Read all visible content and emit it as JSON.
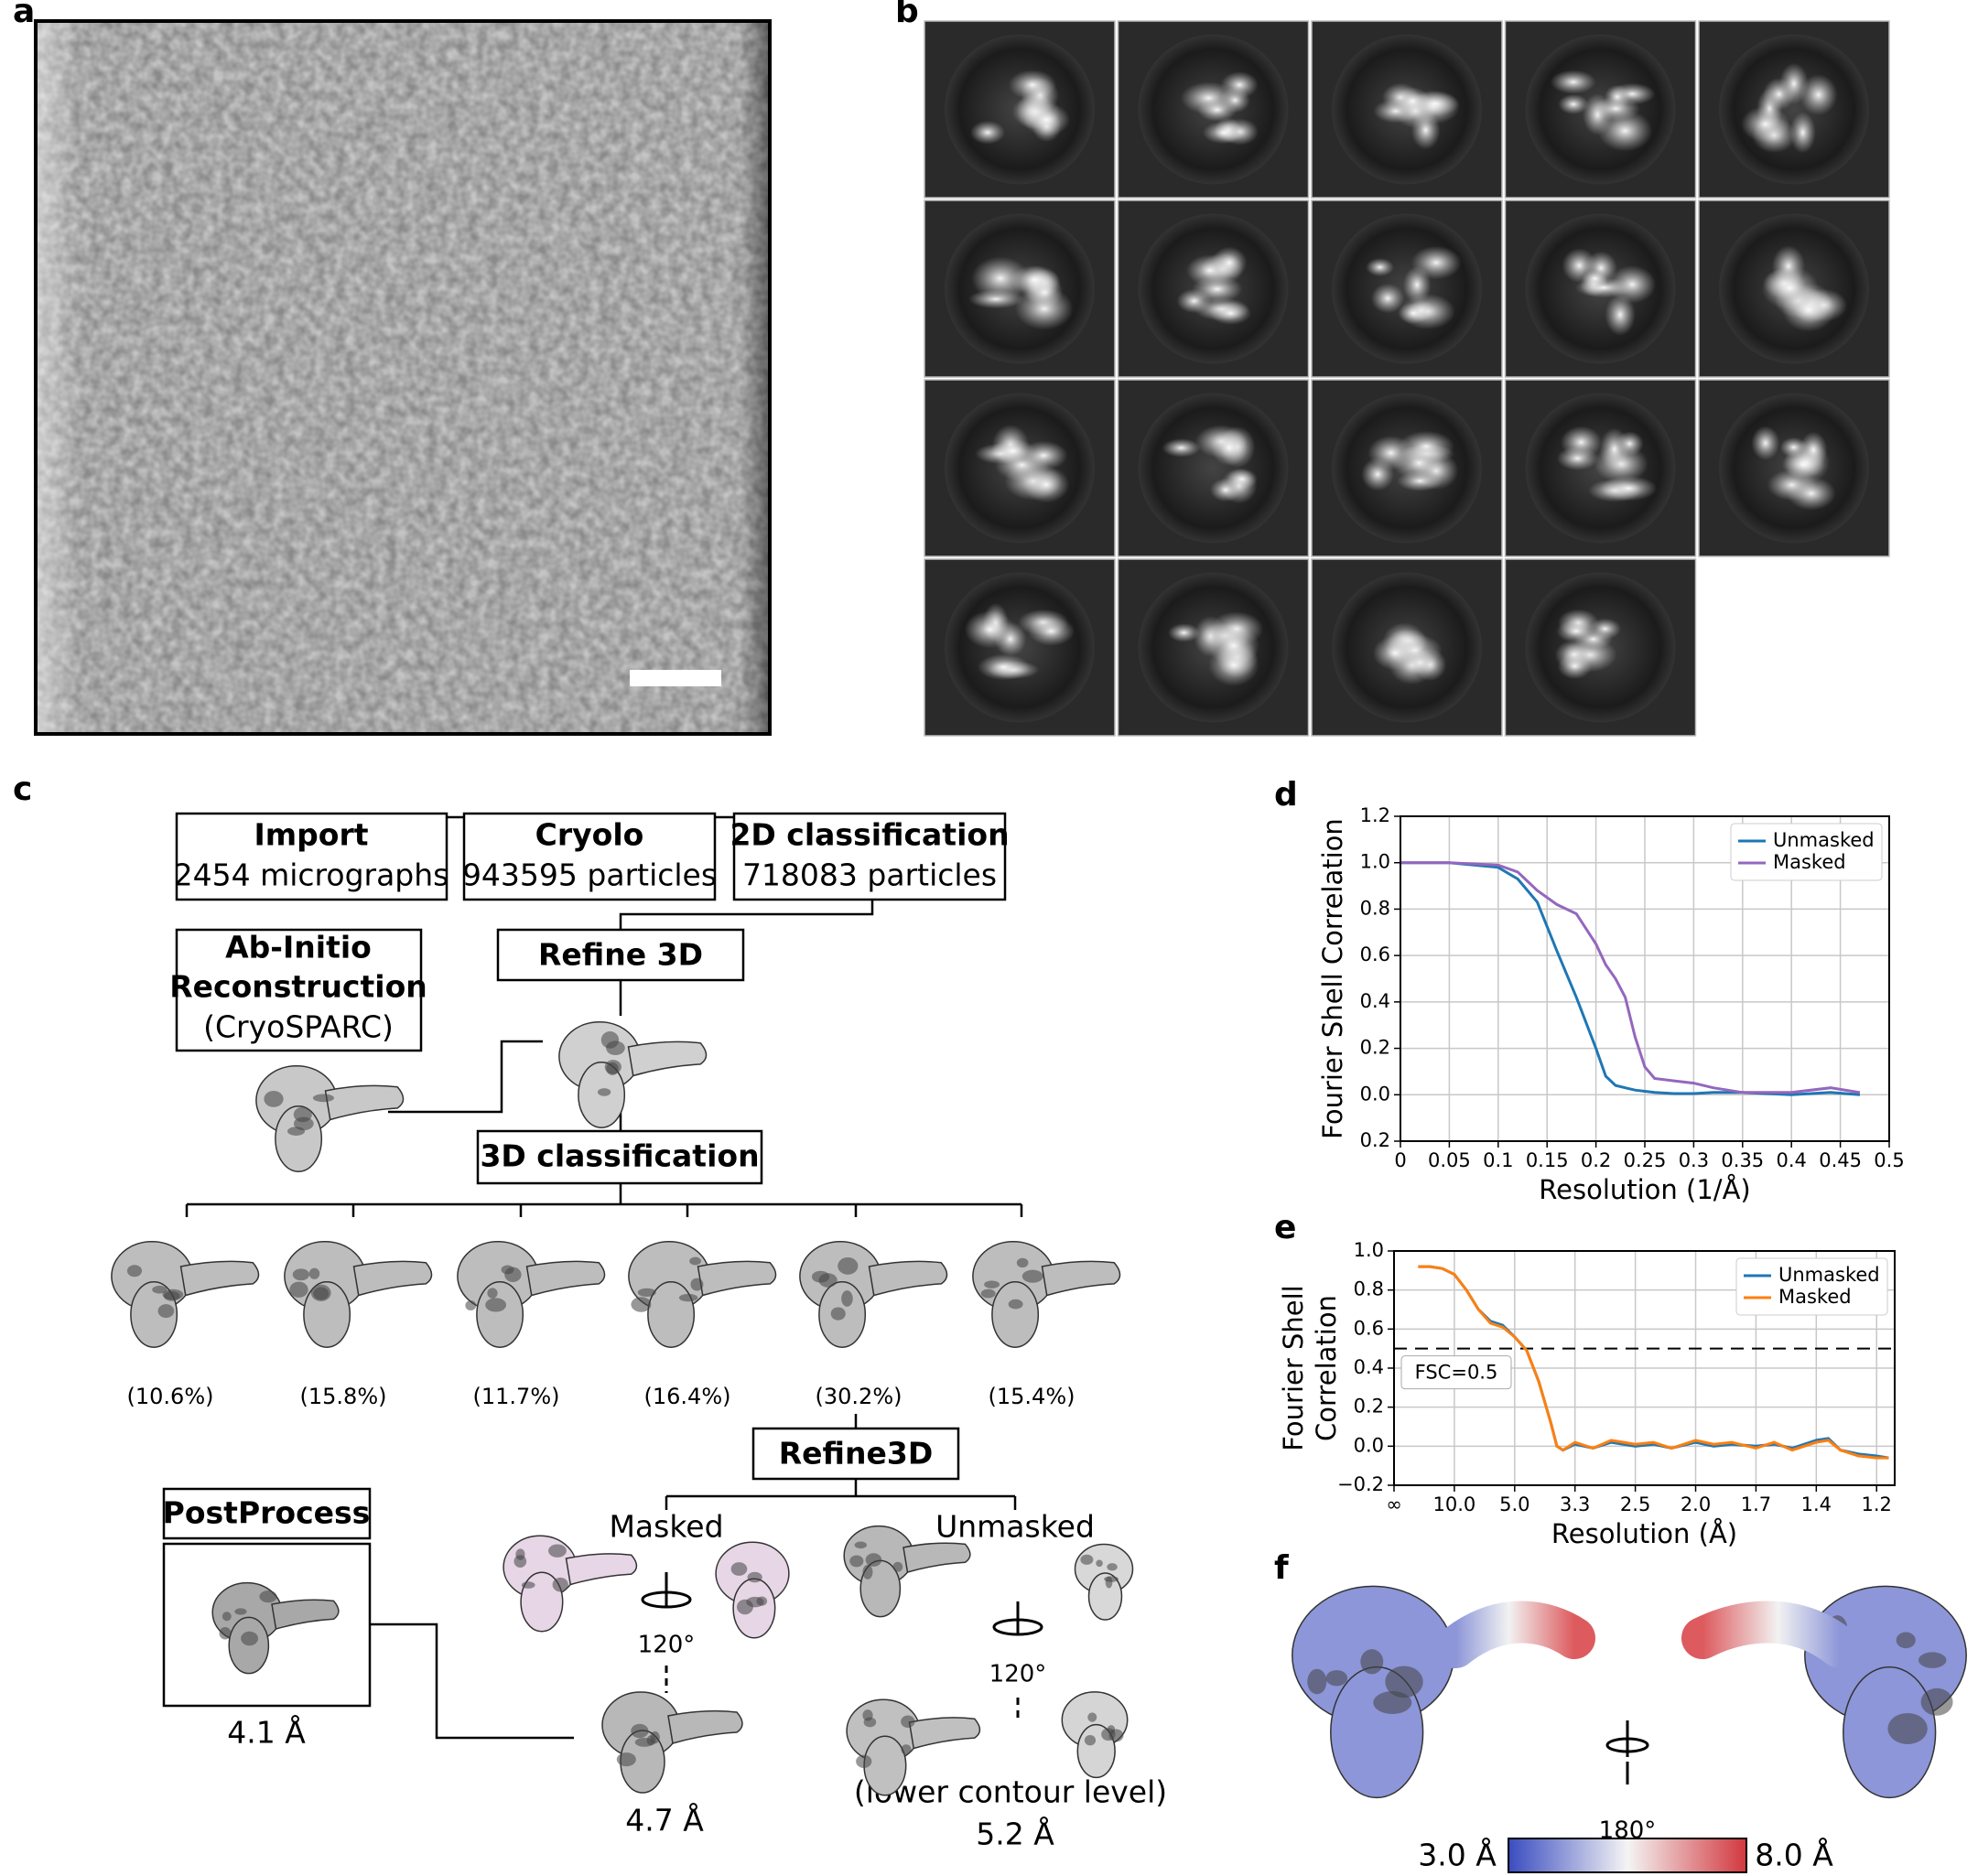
{
  "panel_labels": [
    "a",
    "b",
    "c",
    "d",
    "e",
    "f"
  ],
  "flowchart": {
    "import": {
      "title": "Import",
      "detail": "2454 micrographs"
    },
    "cryolo": {
      "title": "Cryolo",
      "detail": "943595 particles"
    },
    "classification_2d": {
      "title": "2D classification",
      "detail": "718083 particles"
    },
    "ab_initio": {
      "lines": [
        "Ab-Initio",
        "Reconstruction"
      ],
      "detail": "(CryoSPARC)"
    },
    "refine_3d": "Refine 3D",
    "classification_3d": "3D classification",
    "class_fractions": [
      "(10.6%)",
      "(15.8%)",
      "(11.7%)",
      "(16.4%)",
      "(30.2%)",
      "(15.4%)"
    ],
    "refine_3d_second": "Refine3D",
    "masked": "Masked",
    "unmasked": "Unmasked",
    "rotation_masked": "120°",
    "rotation_unmasked": "120°",
    "postprocess": "PostProcess",
    "postprocess_resolution": "4.1 Å",
    "masked_resolution": "4.7 Å",
    "unmasked_note": "(lower contour level)",
    "unmasked_resolution": "5.2 Å"
  },
  "local_resolution": {
    "rotation": "180°",
    "min_label": "3.0 Å",
    "max_label": "8.0 Å",
    "min_color": "#3a4cc0",
    "max_color": "#d1383e"
  },
  "chart_data": [
    {
      "type": "line",
      "x_label": "Resolution (1/Å)",
      "y_label": [
        "Fourier Shell Correlation"
      ],
      "xlim": [
        0,
        0.5
      ],
      "ylim": [
        -0.2,
        1.2
      ],
      "xticks": [
        0,
        0.05,
        0.1,
        0.15,
        0.2,
        0.25,
        0.3,
        0.35,
        0.4,
        0.45,
        0.5
      ],
      "yticks": [
        {
          "value": -0.2,
          "label": "0.2"
        },
        {
          "value": 0,
          "label": "0.0"
        },
        0.2,
        0.4,
        0.6,
        0.8,
        {
          "value": 1,
          "label": "1.0"
        },
        1.2
      ],
      "grid": true,
      "legend": "upper right",
      "x": [
        0,
        0.05,
        0.1,
        0.12,
        0.14,
        0.16,
        0.18,
        0.2,
        0.21,
        0.22,
        0.23,
        0.24,
        0.25,
        0.26,
        0.28,
        0.3,
        0.32,
        0.35,
        0.4,
        0.44,
        0.47
      ],
      "series": [
        {
          "name": "Unmasked",
          "color": "#1f77b4",
          "values": [
            1,
            1,
            0.98,
            0.93,
            0.83,
            0.62,
            0.42,
            0.2,
            0.08,
            0.04,
            0.03,
            0.02,
            0.015,
            0.01,
            0.005,
            0.005,
            0.01,
            0.01,
            0,
            0.01,
            0
          ]
        },
        {
          "name": "Masked",
          "color": "#9467bd",
          "values": [
            1,
            1,
            0.99,
            0.96,
            0.88,
            0.82,
            0.78,
            0.65,
            0.56,
            0.5,
            0.42,
            0.25,
            0.12,
            0.07,
            0.06,
            0.05,
            0.03,
            0.01,
            0.01,
            0.03,
            0.01
          ]
        }
      ]
    },
    {
      "type": "line",
      "x_label": "Resolution (Å)",
      "y_label": [
        "Fourier Shell",
        "Correlation"
      ],
      "xlim": [
        0,
        0.83
      ],
      "ylim": [
        -0.2,
        1.0
      ],
      "xticks": [
        {
          "value": 0,
          "label": "∞"
        },
        {
          "value": 0.1,
          "label": "10.0"
        },
        {
          "value": 0.2,
          "label": "5.0"
        },
        {
          "value": 0.3,
          "label": "3.3"
        },
        {
          "value": 0.4,
          "label": "2.5"
        },
        {
          "value": 0.5,
          "label": "2.0"
        },
        {
          "value": 0.6,
          "label": "1.7"
        },
        {
          "value": 0.7,
          "label": "1.4"
        },
        {
          "value": 0.8,
          "label": "1.2"
        }
      ],
      "yticks": [
        {
          "value": -0.2,
          "label": "−0.2"
        },
        {
          "value": 0,
          "label": "0.0"
        },
        0.2,
        0.4,
        0.6,
        0.8,
        {
          "value": 1,
          "label": "1.0"
        }
      ],
      "grid": true,
      "legend": "upper right",
      "annotation": {
        "text": "FSC=0.5",
        "y": 0.5
      },
      "x": [
        0.04,
        0.06,
        0.08,
        0.1,
        0.12,
        0.14,
        0.16,
        0.18,
        0.2,
        0.22,
        0.24,
        0.26,
        0.27,
        0.28,
        0.3,
        0.33,
        0.36,
        0.4,
        0.43,
        0.46,
        0.5,
        0.53,
        0.56,
        0.6,
        0.63,
        0.66,
        0.7,
        0.72,
        0.74,
        0.77,
        0.8,
        0.82
      ],
      "series": [
        {
          "name": "Unmasked",
          "color": "#1f77b4",
          "values": [
            0.92,
            0.92,
            0.91,
            0.88,
            0.8,
            0.7,
            0.64,
            0.62,
            0.56,
            0.49,
            0.33,
            0.12,
            0.0,
            -0.02,
            0.01,
            -0.01,
            0.02,
            0.0,
            0.01,
            -0.01,
            0.02,
            0.0,
            0.01,
            0.0,
            0.01,
            -0.01,
            0.03,
            0.04,
            -0.02,
            -0.04,
            -0.05,
            -0.06
          ]
        },
        {
          "name": "Masked",
          "color": "#ff7f0e",
          "values": [
            0.92,
            0.92,
            0.91,
            0.88,
            0.8,
            0.7,
            0.63,
            0.61,
            0.56,
            0.49,
            0.33,
            0.12,
            0.0,
            -0.02,
            0.02,
            -0.01,
            0.03,
            0.01,
            0.02,
            -0.01,
            0.03,
            0.01,
            0.02,
            -0.01,
            0.02,
            -0.02,
            0.02,
            0.03,
            -0.02,
            -0.05,
            -0.06,
            -0.06
          ]
        }
      ]
    }
  ]
}
